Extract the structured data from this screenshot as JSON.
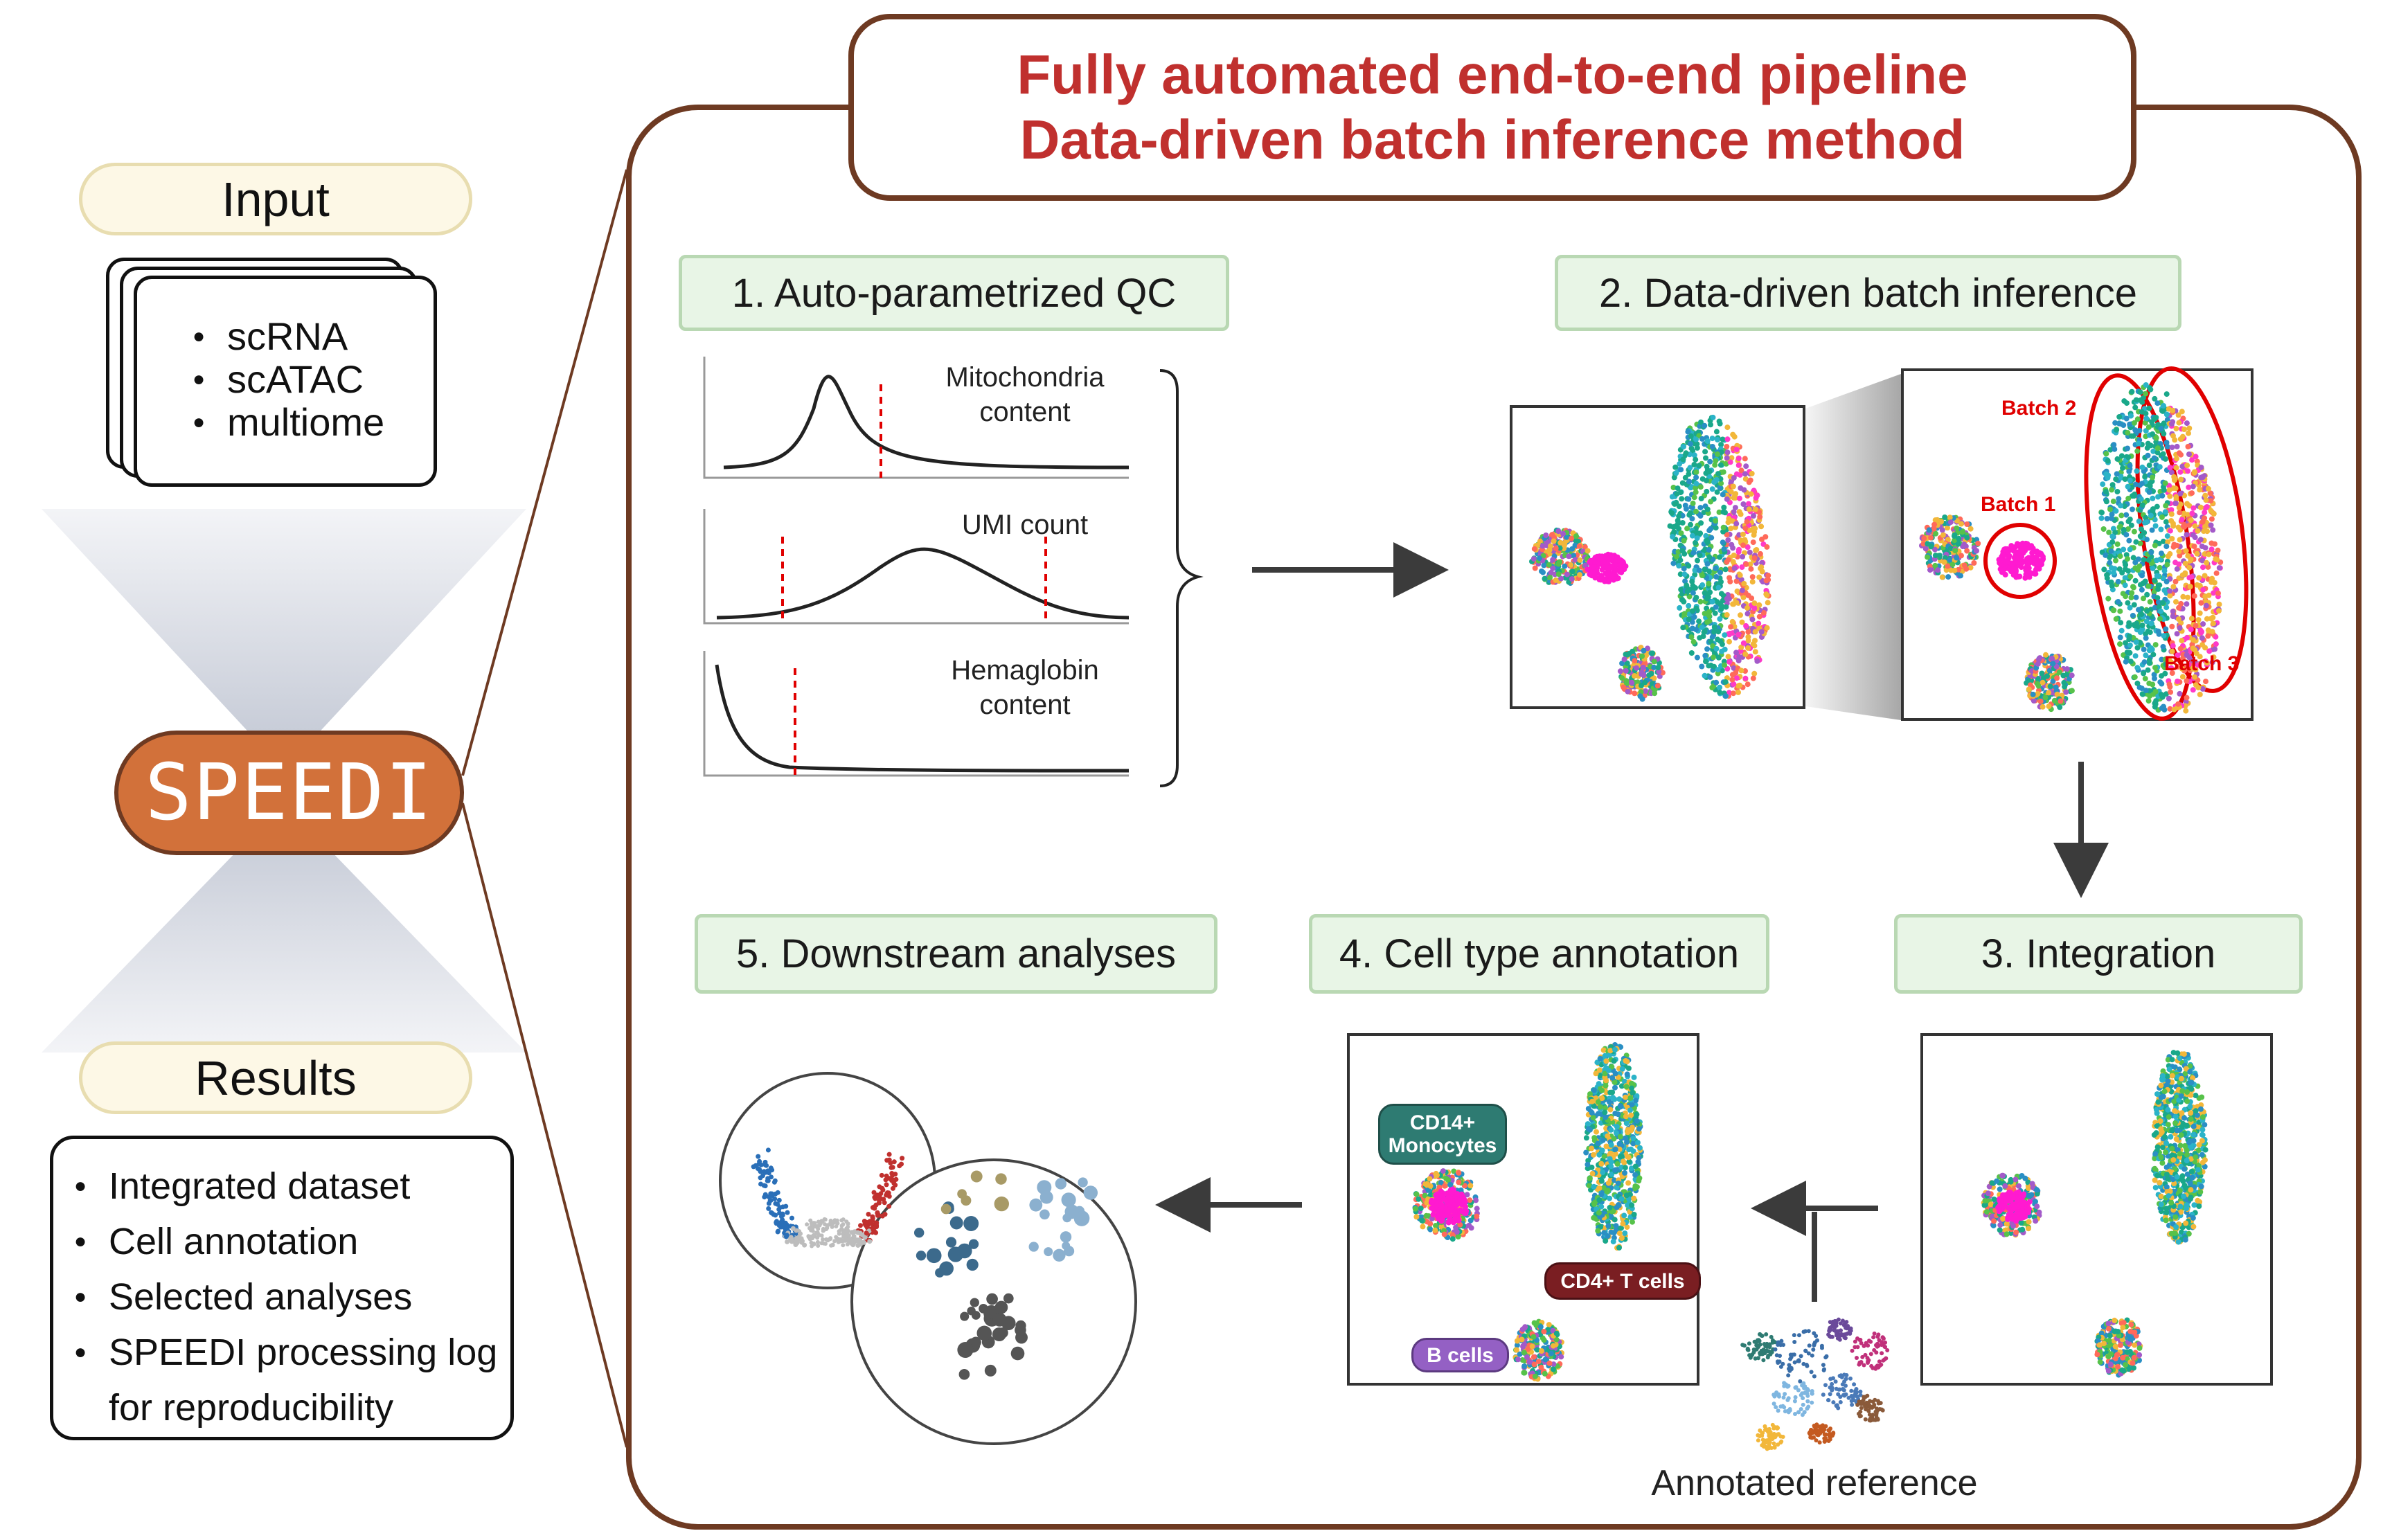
{
  "left": {
    "input_label": "Input",
    "input_items": [
      "scRNA",
      "scATAC",
      "multiome"
    ],
    "tool_name": "SPEEDI",
    "results_label": "Results",
    "result_items": [
      "Integrated dataset",
      "Cell annotation",
      "Selected analyses",
      "SPEEDI processing log",
      "for reproducibility"
    ]
  },
  "header": {
    "line1": "Fully automated end-to-end pipeline",
    "line2": "Data-driven batch inference method"
  },
  "steps": {
    "qc": "1.  Auto-parametrized QC",
    "batch": "2. Data-driven batch inference",
    "integration": "3. Integration",
    "annotation": "4. Cell type annotation",
    "downstream": "5. Downstream analyses"
  },
  "qc_plots": {
    "mito": [
      "Mitochondria",
      "content"
    ],
    "umi": "UMI count",
    "hemo": [
      "Hemaglobin",
      "content"
    ]
  },
  "batches": {
    "b1": "Batch 1",
    "b2": "Batch 2",
    "b3": "Batch 3"
  },
  "cell_types": {
    "mono": [
      "CD14+",
      "Monocytes"
    ],
    "tcell": "CD4+ T cells",
    "bcell": "B cells"
  },
  "reference_label": "Annotated reference",
  "colors": {
    "header_text": "#c0302e",
    "frame": "#6e3a22",
    "speedi_fill": "#d2713a",
    "step_fill": "#e8f5e6",
    "step_border": "#b9d8b3",
    "cream_pill": "#fdf8e6",
    "mono_tag": "#2e7b72",
    "tcell_tag": "#7a1e22",
    "bcell_tag": "#9460c4",
    "magenta_cluster": "#ff1ad0"
  }
}
